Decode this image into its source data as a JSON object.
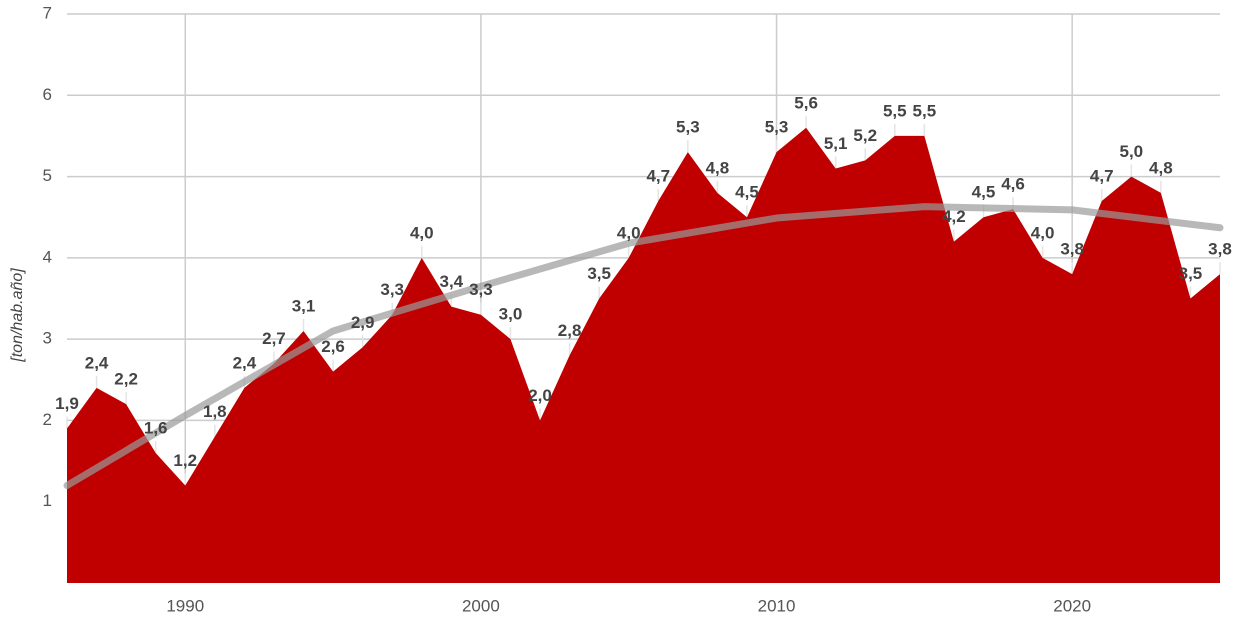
{
  "chart_data": {
    "type": "area",
    "y_label": "[ton/hab.año]",
    "x": [
      1986,
      1987,
      1988,
      1989,
      1990,
      1991,
      1992,
      1993,
      1994,
      1995,
      1996,
      1997,
      1998,
      1999,
      2000,
      2001,
      2002,
      2003,
      2004,
      2005,
      2006,
      2007,
      2008,
      2009,
      2010,
      2011,
      2012,
      2013,
      2014,
      2015,
      2016,
      2017,
      2018,
      2019,
      2020,
      2021,
      2022,
      2023,
      2024,
      2025
    ],
    "values": [
      1.9,
      2.4,
      2.2,
      1.6,
      1.2,
      1.8,
      2.4,
      2.7,
      3.1,
      2.6,
      2.9,
      3.3,
      4.0,
      3.4,
      3.3,
      3.0,
      2.0,
      2.8,
      3.5,
      4.0,
      4.7,
      5.3,
      4.8,
      4.5,
      5.3,
      5.6,
      5.1,
      5.2,
      5.5,
      5.5,
      4.2,
      4.5,
      4.6,
      4.0,
      3.8,
      4.7,
      5.0,
      4.8,
      3.5,
      3.8
    ],
    "value_labels": [
      "1,9",
      "2,4",
      "2,2",
      "1,6",
      "1,2",
      "1,8",
      "2,4",
      "2,7",
      "3,1",
      "2,6",
      "2,9",
      "3,3",
      "4,0",
      "3,4",
      "3,3",
      "3,0",
      "2,0",
      "2,8",
      "3,5",
      "4,0",
      "4,7",
      "5,3",
      "4,8",
      "4,5",
      "5,3",
      "5,6",
      "5,1",
      "5,2",
      "5,5",
      "5,5",
      "4,2",
      "4,5",
      "4,6",
      "4,0",
      "3,8",
      "4,7",
      "5,0",
      "4,8",
      "3,5",
      "3,8"
    ],
    "color": "#c00000",
    "trend": {
      "color": "#9a9a9a",
      "x": [
        1986,
        1990,
        1995,
        2000,
        2005,
        2010,
        2015,
        2020,
        2025
      ],
      "values": [
        1.2,
        2.06,
        3.1,
        3.65,
        4.18,
        4.49,
        4.63,
        4.59,
        4.37
      ]
    },
    "xlim": [
      1986,
      2025
    ],
    "xticks": [
      1990,
      2000,
      2010,
      2020
    ],
    "ylim": [
      0,
      7
    ],
    "yticks": [
      1,
      2,
      3,
      4,
      5,
      6,
      7
    ],
    "grid": true
  }
}
